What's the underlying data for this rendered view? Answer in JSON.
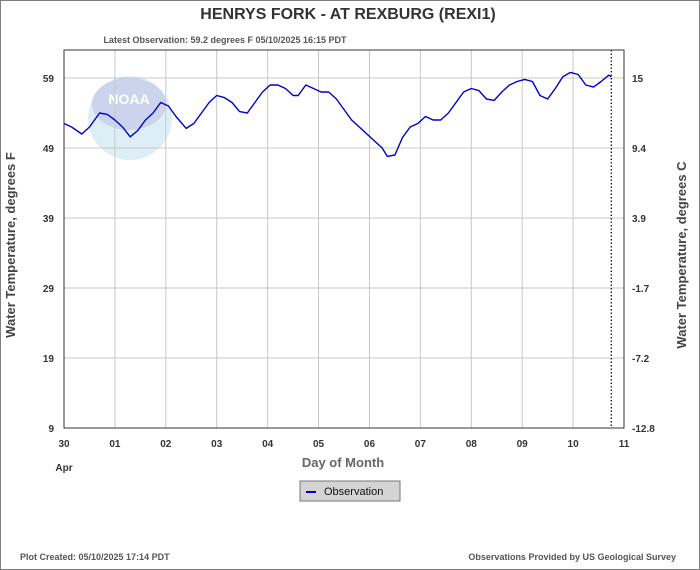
{
  "chart_data": {
    "type": "line",
    "title": "HENRYS FORK - AT REXBURG  (REXI1)",
    "subtitle": "Latest Observation: 59.2 degrees F 05/10/2025 16:15 PDT",
    "xlabel": "Day of Month",
    "ylabel_left": "Water Temperature, degrees F",
    "ylabel_right": "Water Temperature, degrees C",
    "month_label": "Apr",
    "x_ticks": [
      "30",
      "01",
      "02",
      "03",
      "04",
      "05",
      "06",
      "07",
      "08",
      "09",
      "10",
      "11"
    ],
    "y_ticks_left": [
      "59",
      "49",
      "39",
      "29",
      "19",
      "9"
    ],
    "y_ticks_right": [
      "15",
      "9.4",
      "3.9",
      "-1.7",
      "-7.2",
      "-12.8"
    ],
    "ylim": [
      9,
      63
    ],
    "xlim": [
      0,
      11
    ],
    "grid": true,
    "legend_position": "bottom-center",
    "latest_obs_marker_x": 10.75,
    "series": [
      {
        "name": "Observation",
        "color": "#0000cc",
        "x": [
          0,
          0.15,
          0.35,
          0.5,
          0.7,
          0.85,
          1.0,
          1.15,
          1.3,
          1.45,
          1.6,
          1.75,
          1.9,
          2.05,
          2.2,
          2.4,
          2.55,
          2.7,
          2.85,
          3.0,
          3.15,
          3.3,
          3.45,
          3.6,
          3.75,
          3.9,
          4.05,
          4.2,
          4.35,
          4.5,
          4.6,
          4.75,
          4.9,
          5.05,
          5.2,
          5.35,
          5.5,
          5.65,
          5.8,
          5.95,
          6.1,
          6.25,
          6.35,
          6.5,
          6.65,
          6.8,
          6.95,
          7.1,
          7.25,
          7.4,
          7.55,
          7.7,
          7.85,
          8.0,
          8.15,
          8.3,
          8.45,
          8.6,
          8.75,
          8.9,
          9.05,
          9.2,
          9.35,
          9.5,
          9.65,
          9.8,
          9.95,
          10.1,
          10.25,
          10.4,
          10.55,
          10.7,
          10.75
        ],
        "y": [
          52.5,
          52.0,
          51.0,
          52.0,
          54.0,
          53.8,
          53.0,
          52.0,
          50.6,
          51.5,
          53.0,
          54.0,
          55.5,
          55.0,
          53.5,
          51.8,
          52.5,
          54.0,
          55.5,
          56.5,
          56.2,
          55.5,
          54.2,
          54.0,
          55.5,
          57.0,
          58.0,
          58.0,
          57.5,
          56.5,
          56.5,
          58.0,
          57.5,
          57.0,
          57.0,
          56.0,
          54.5,
          53.0,
          52.0,
          51.0,
          50.0,
          49.0,
          47.8,
          48.0,
          50.5,
          52.0,
          52.5,
          53.5,
          53.0,
          53.0,
          54.0,
          55.5,
          57.0,
          57.5,
          57.2,
          56.0,
          55.8,
          57.0,
          58.0,
          58.5,
          58.8,
          58.5,
          56.5,
          56.0,
          57.5,
          59.2,
          59.8,
          59.5,
          58.0,
          57.7,
          58.5,
          59.4,
          59.2
        ]
      }
    ]
  },
  "footer": {
    "left": "Plot Created: 05/10/2025 17:14 PDT",
    "right": "Observations Provided by US Geological Survey"
  },
  "watermark": {
    "label": "NOAA",
    "colors": [
      "#b8c6e8",
      "#cce6f2"
    ]
  }
}
